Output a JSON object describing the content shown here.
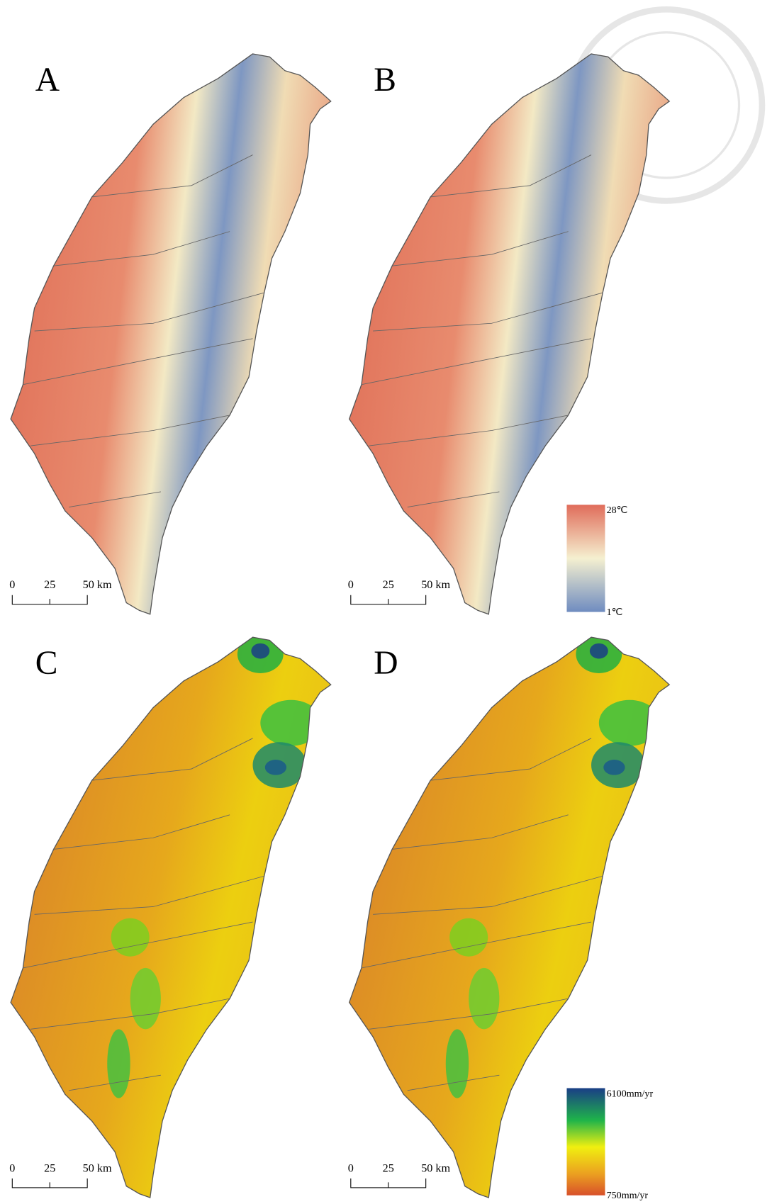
{
  "panels": [
    {
      "label": "A",
      "scale_bar": [
        "0",
        "25",
        "50 km"
      ]
    },
    {
      "label": "B",
      "scale_bar": [
        "0",
        "25",
        "50 km"
      ],
      "legend": {
        "max": "28℃",
        "min": "1℃"
      }
    },
    {
      "label": "C",
      "scale_bar": [
        "0",
        "25",
        "50 km"
      ]
    },
    {
      "label": "D",
      "scale_bar": [
        "0",
        "25",
        "50 km"
      ],
      "legend": {
        "max": "6100mm/yr",
        "min": "750mm/yr"
      }
    }
  ]
}
